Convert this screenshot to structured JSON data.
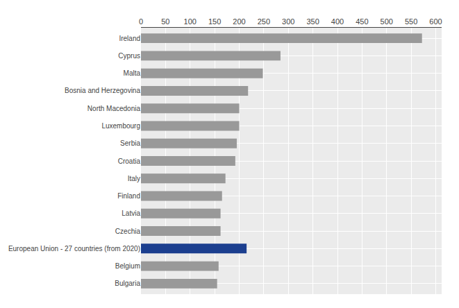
{
  "chart_data": {
    "type": "bar",
    "orientation": "horizontal",
    "categories": [
      "Bulgaria",
      "Belgium",
      "European Union - 27 countries (from 2020)",
      "Czechia",
      "Latvia",
      "Finland",
      "Italy",
      "Croatia",
      "Serbia",
      "Luxembourg",
      "North Macedonia",
      "Bosnia and Herzegovina",
      "Malta",
      "Cyprus",
      "Ireland"
    ],
    "values": [
      155,
      158,
      215,
      162,
      162,
      165,
      172,
      192,
      195,
      200,
      200,
      218,
      248,
      284,
      572
    ],
    "colors": [
      "#999999",
      "#999999",
      "#1c3f8f",
      "#999999",
      "#999999",
      "#999999",
      "#999999",
      "#999999",
      "#999999",
      "#999999",
      "#999999",
      "#999999",
      "#999999",
      "#999999",
      "#999999"
    ],
    "xlim": [
      0,
      612
    ],
    "xticks": [
      0,
      50,
      100,
      150,
      200,
      250,
      300,
      350,
      400,
      450,
      500,
      550,
      600
    ],
    "grid": true
  }
}
